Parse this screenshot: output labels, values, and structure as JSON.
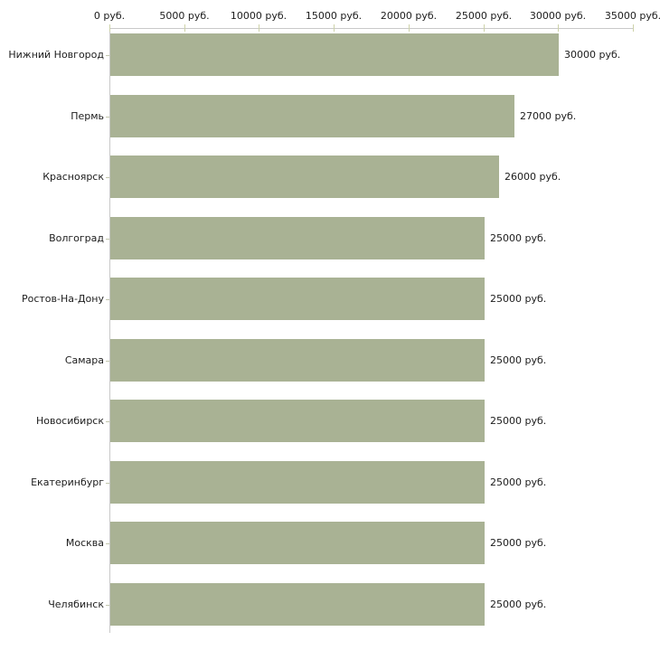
{
  "chart_data": {
    "type": "bar",
    "orientation": "horizontal",
    "title": "",
    "xlabel": "",
    "ylabel": "",
    "unit_suffix": " руб.",
    "categories": [
      "Нижний Новгород",
      "Пермь",
      "Красноярск",
      "Волгоград",
      "Ростов-На-Дону",
      "Самара",
      "Новосибирск",
      "Екатеринбург",
      "Москва",
      "Челябинск"
    ],
    "values": [
      30000,
      27000,
      26000,
      25000,
      25000,
      25000,
      25000,
      25000,
      25000,
      25000
    ],
    "value_labels": [
      "30000 руб.",
      "27000 руб.",
      "26000 руб.",
      "25000 руб.",
      "25000 руб.",
      "25000 руб.",
      "25000 руб.",
      "25000 руб.",
      "25000 руб.",
      "25000 руб."
    ],
    "x_ticks": [
      {
        "value": 0,
        "label": "0 руб."
      },
      {
        "value": 5000,
        "label": "5000 руб."
      },
      {
        "value": 10000,
        "label": "10000 руб."
      },
      {
        "value": 15000,
        "label": "15000 руб."
      },
      {
        "value": 20000,
        "label": "20000 руб."
      },
      {
        "value": 25000,
        "label": "25000 руб."
      },
      {
        "value": 30000,
        "label": "30000 руб."
      },
      {
        "value": 35000,
        "label": "35000 руб."
      }
    ],
    "xlim": [
      0,
      35000
    ],
    "grid": false,
    "legend_position": "none",
    "colors": {
      "bar": "#a9b294",
      "axis_line": "#c9c9c9",
      "x_tick": "#cdd2a9",
      "y_tick": "#c2c6ad",
      "text": "#1c1c1c",
      "background": "#ffffff"
    }
  }
}
